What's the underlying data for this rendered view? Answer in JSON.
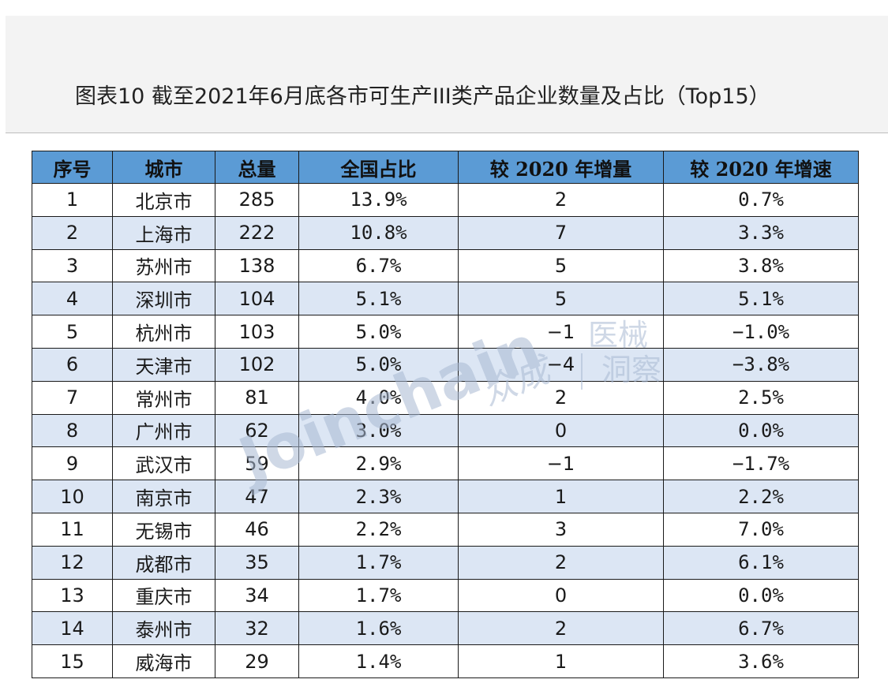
{
  "title": "图表10 截至2021年6月底各市可生产III类产品企业数量及占比（Top15）",
  "table": {
    "headers": [
      "序号",
      "城市",
      "总量",
      "全国占比",
      "较 2020 年增量",
      "较 2020 年增速"
    ],
    "rows": [
      [
        "1",
        "北京市",
        "285",
        "13.9%",
        "2",
        "0.7%"
      ],
      [
        "2",
        "上海市",
        "222",
        "10.8%",
        "7",
        "3.3%"
      ],
      [
        "3",
        "苏州市",
        "138",
        "6.7%",
        "5",
        "3.8%"
      ],
      [
        "4",
        "深圳市",
        "104",
        "5.1%",
        "5",
        "5.1%"
      ],
      [
        "5",
        "杭州市",
        "103",
        "5.0%",
        "−1",
        "−1.0%"
      ],
      [
        "6",
        "天津市",
        "102",
        "5.0%",
        "−4",
        "−3.8%"
      ],
      [
        "7",
        "常州市",
        "81",
        "4.0%",
        "2",
        "2.5%"
      ],
      [
        "8",
        "广州市",
        "62",
        "3.0%",
        "0",
        "0.0%"
      ],
      [
        "9",
        "武汉市",
        "59",
        "2.9%",
        "−1",
        "−1.7%"
      ],
      [
        "10",
        "南京市",
        "47",
        "2.3%",
        "1",
        "2.2%"
      ],
      [
        "11",
        "无锡市",
        "46",
        "2.2%",
        "3",
        "7.0%"
      ],
      [
        "12",
        "成都市",
        "35",
        "1.7%",
        "2",
        "6.1%"
      ],
      [
        "13",
        "重庆市",
        "34",
        "1.7%",
        "0",
        "0.0%"
      ],
      [
        "14",
        "泰州市",
        "32",
        "1.6%",
        "2",
        "6.7%"
      ],
      [
        "15",
        "威海市",
        "29",
        "1.4%",
        "1",
        "3.6%"
      ]
    ]
  },
  "watermark": {
    "brand": "Joinchain",
    "cn": "众成",
    "line1": "医械",
    "line2": "洞察"
  },
  "colors": {
    "header_bg": "#5b9bd5",
    "alt_row_bg": "#dce6f4",
    "title_band_bg": "#f3f3f3",
    "watermark": "#8fa6c8"
  }
}
